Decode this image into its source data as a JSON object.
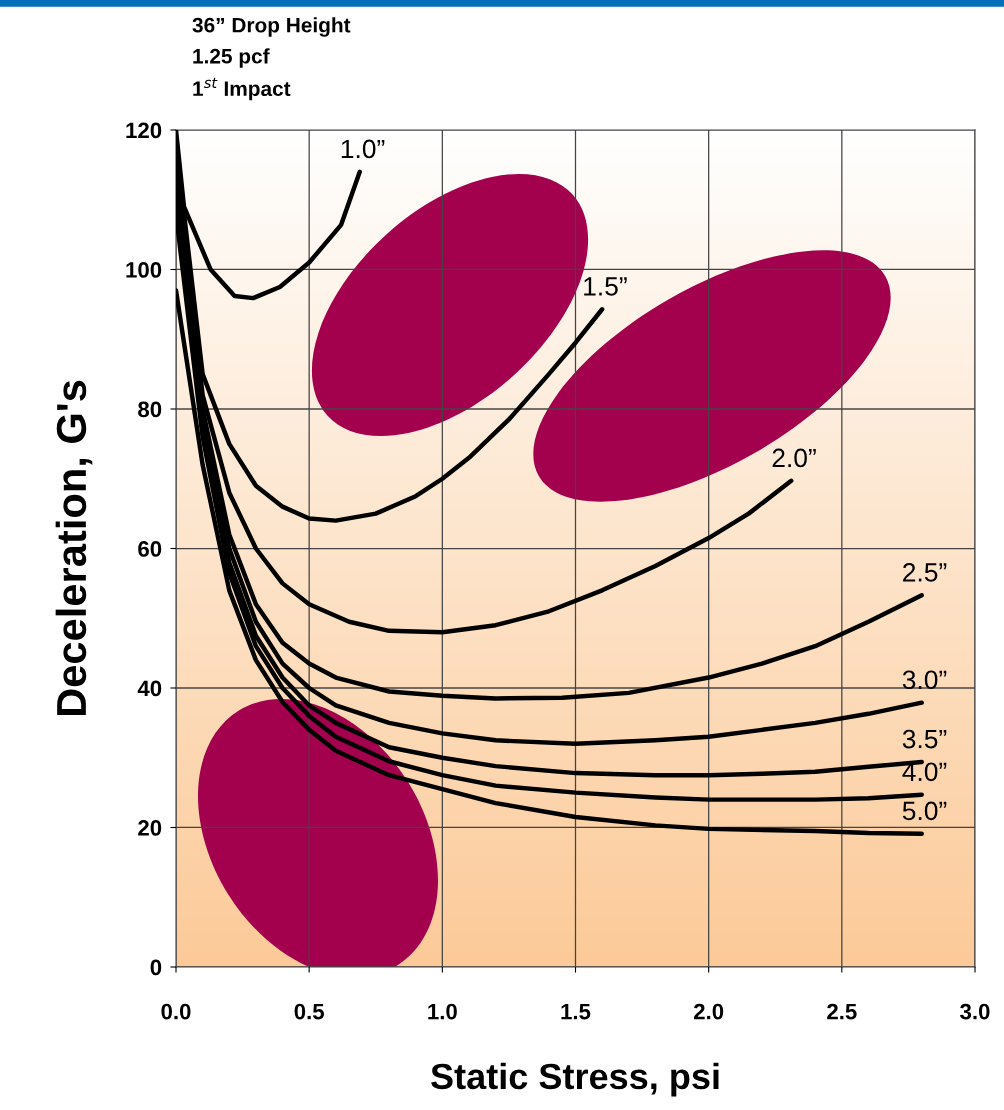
{
  "chart_data": {
    "type": "line",
    "xlabel": "Static Stress, psi",
    "ylabel": "Deceleration, G's",
    "annotations": [
      "36” Drop Height",
      "1.25 pcf",
      "1$^{st}$ Impact"
    ],
    "xlim": [
      0,
      3
    ],
    "ylim": [
      0,
      120
    ],
    "xticks": [
      {
        "value": 0,
        "label": "0.0"
      },
      0.5,
      {
        "value": 1,
        "label": "1.0"
      },
      1.5,
      {
        "value": 2,
        "label": "2.0"
      },
      2.5,
      {
        "value": 3,
        "label": "3.0"
      }
    ],
    "yticks": [
      0,
      20,
      40,
      60,
      80,
      100,
      120
    ],
    "grid": true,
    "legend": false,
    "marker": "none",
    "line_style": "solid",
    "series": [
      {
        "name": "1.0”",
        "color": "#000000",
        "x": [
          0.0,
          0.03,
          0.13,
          0.22,
          0.29,
          0.39,
          0.5,
          0.62,
          0.69
        ],
        "values": [
          120,
          109,
          100,
          96.2,
          95.9,
          97.5,
          101,
          106.4,
          114
        ]
      },
      {
        "name": "1.5”",
        "color": "#000000",
        "x": [
          0.0,
          0.1,
          0.2,
          0.3,
          0.4,
          0.5,
          0.6,
          0.75,
          0.9,
          1.0,
          1.1,
          1.25,
          1.4,
          1.5,
          1.6
        ],
        "values": [
          118,
          85,
          75,
          69,
          66,
          64.3,
          64,
          65,
          67.5,
          70,
          73,
          78.5,
          85,
          89.5,
          94.3
        ]
      },
      {
        "name": "2.0”",
        "color": "#000000",
        "x": [
          0.0,
          0.1,
          0.2,
          0.3,
          0.4,
          0.5,
          0.65,
          0.8,
          1.0,
          1.2,
          1.4,
          1.6,
          1.8,
          2.0,
          2.15,
          2.31
        ],
        "values": [
          116,
          82,
          68,
          60,
          55,
          52,
          49.5,
          48.2,
          48,
          49,
          51,
          54,
          57.5,
          61.5,
          65,
          69.7
        ]
      },
      {
        "name": "2.5”",
        "color": "#000000",
        "x": [
          0.0,
          0.1,
          0.2,
          0.3,
          0.4,
          0.5,
          0.6,
          0.8,
          1.0,
          1.2,
          1.45,
          1.7,
          2.0,
          2.2,
          2.4,
          2.6,
          2.8
        ],
        "values": [
          114,
          80,
          62,
          52,
          46.5,
          43.5,
          41.5,
          39.5,
          38.9,
          38.5,
          38.6,
          39.3,
          41.5,
          43.5,
          46,
          49.5,
          53.3
        ]
      },
      {
        "name": "3.0”",
        "color": "#000000",
        "x": [
          0.0,
          0.1,
          0.2,
          0.3,
          0.4,
          0.5,
          0.6,
          0.8,
          1.0,
          1.2,
          1.5,
          1.8,
          2.0,
          2.2,
          2.4,
          2.6,
          2.8
        ],
        "values": [
          112,
          78,
          60,
          49.5,
          43.5,
          40,
          37.5,
          35,
          33.5,
          32.5,
          32,
          32.5,
          33,
          34,
          35,
          36.3,
          37.9
        ]
      },
      {
        "name": "3.5”",
        "color": "#000000",
        "x": [
          0.0,
          0.1,
          0.2,
          0.3,
          0.4,
          0.5,
          0.6,
          0.8,
          1.0,
          1.2,
          1.5,
          1.8,
          2.0,
          2.2,
          2.4,
          2.6,
          2.8
        ],
        "values": [
          110,
          77,
          58,
          47.5,
          41.5,
          37.5,
          35,
          31.5,
          30,
          28.8,
          27.8,
          27.5,
          27.5,
          27.7,
          28,
          28.7,
          29.4
        ]
      },
      {
        "name": "4.0”",
        "color": "#000000",
        "x": [
          0.0,
          0.1,
          0.2,
          0.3,
          0.4,
          0.5,
          0.6,
          0.8,
          1.0,
          1.2,
          1.5,
          1.8,
          2.0,
          2.4,
          2.6,
          2.8
        ],
        "values": [
          108,
          76,
          56.5,
          46,
          40,
          36,
          33,
          29.5,
          27.5,
          26,
          25,
          24.3,
          24,
          24,
          24.2,
          24.7
        ]
      },
      {
        "name": "5.0”",
        "color": "#000000",
        "x": [
          0.0,
          0.1,
          0.2,
          0.3,
          0.4,
          0.5,
          0.6,
          0.8,
          1.0,
          1.2,
          1.5,
          1.8,
          2.0,
          2.4,
          2.6,
          2.8
        ],
        "values": [
          97,
          72,
          54,
          44,
          38,
          34,
          31,
          27.5,
          25.5,
          23.5,
          21.5,
          20.3,
          19.8,
          19.5,
          19.2,
          19.1
        ]
      }
    ]
  }
}
